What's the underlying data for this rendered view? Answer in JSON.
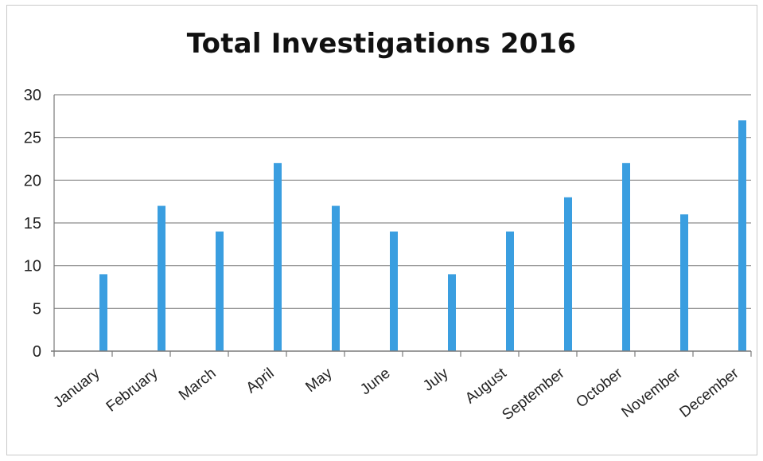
{
  "chart_data": {
    "type": "bar",
    "title": "Total Investigations 2016",
    "categories": [
      "January",
      "February",
      "March",
      "April",
      "May",
      "June",
      "July",
      "August",
      "September",
      "October",
      "November",
      "December"
    ],
    "values": [
      9,
      17,
      14,
      22,
      17,
      14,
      9,
      14,
      18,
      22,
      16,
      27
    ],
    "ylim": [
      0,
      30
    ],
    "yticks": [
      0,
      5,
      10,
      15,
      20,
      25,
      30
    ],
    "xlabel": "",
    "ylabel": "",
    "grid": true,
    "legend": "none",
    "colors": {
      "bar": "#3a9ee0",
      "grid": "#8c8c8c",
      "axis": "#7a7a7a"
    }
  }
}
